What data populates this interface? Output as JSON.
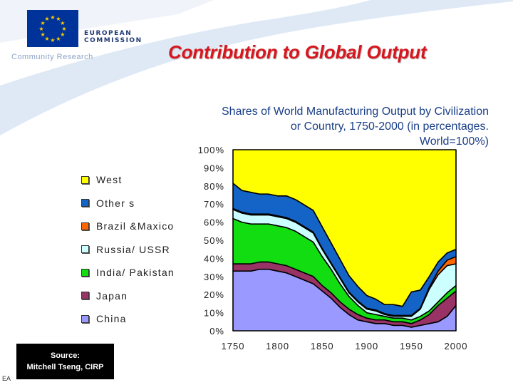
{
  "header": {
    "org_line1": "EUROPEAN",
    "org_line2": "COMMISSION",
    "program": "Community Research",
    "title": "Contribution to Global Output"
  },
  "source": {
    "line1": "Source:",
    "line2": "Mitchell Tseng, CIRP"
  },
  "footer_fragment": "EA",
  "colors": {
    "title": "#d8161e",
    "eu_blue": "#003399",
    "subtitle": "#1a3f88"
  },
  "chart_data": {
    "type": "area",
    "stacked": true,
    "title": "Shares of World Manufacturing Output by Civilization or Country, 1750-2000 (in percentages. World=100%)",
    "title_lines": [
      "Shares of World Manufacturing Output by Civilization",
      "or Country, 1750-2000 (in percentages.",
      "World=100%)"
    ],
    "xlabel": "",
    "ylabel": "",
    "xlim": [
      1750,
      2000
    ],
    "ylim": [
      0,
      100
    ],
    "x_ticks": [
      1750,
      1800,
      1850,
      1900,
      1950,
      2000
    ],
    "y_ticks": [
      "0%",
      "10%",
      "20%",
      "30%",
      "40%",
      "50%",
      "60%",
      "70%",
      "80%",
      "90%",
      "100%"
    ],
    "legend_position": "left",
    "x": [
      1750,
      1760,
      1770,
      1780,
      1790,
      1800,
      1810,
      1820,
      1830,
      1840,
      1850,
      1860,
      1870,
      1880,
      1890,
      1900,
      1910,
      1920,
      1930,
      1940,
      1950,
      1960,
      1970,
      1980,
      1990,
      2000
    ],
    "series": [
      {
        "name": "China",
        "color": "#9999ff",
        "values": [
          33,
          33,
          33,
          34,
          34,
          33,
          32,
          30,
          28,
          26,
          22,
          18,
          13,
          9,
          6,
          5,
          4,
          4,
          3,
          3,
          2,
          3,
          4,
          5,
          8,
          14
        ]
      },
      {
        "name": "Japan",
        "color": "#993366",
        "values": [
          4,
          4,
          4,
          4,
          4,
          4,
          4,
          4,
          4,
          4,
          3,
          3,
          3,
          3,
          3,
          2,
          2,
          2,
          2,
          2,
          2,
          3,
          5,
          9,
          10,
          8
        ]
      },
      {
        "name": "India/ Pakistan",
        "color": "#11dd11",
        "values": [
          25,
          23,
          22,
          21,
          21,
          21,
          21,
          21,
          20,
          19,
          16,
          13,
          10,
          7,
          5,
          3,
          3,
          2,
          2,
          2,
          2,
          2,
          2,
          2,
          3,
          3
        ]
      },
      {
        "name": "Russia/ USSR",
        "color": "#ccffff",
        "values": [
          5,
          5,
          5,
          5,
          5,
          5,
          5,
          5,
          5,
          5,
          4,
          3,
          3,
          2,
          2,
          2,
          2,
          1,
          1,
          1,
          2,
          4,
          12,
          15,
          15,
          12
        ]
      },
      {
        "name": "Brazil &Maxico",
        "color": "#ff6600",
        "values": [
          0.5,
          0.5,
          0.5,
          0.5,
          0.5,
          0.5,
          0.5,
          0.5,
          0.5,
          0.5,
          0.5,
          0.5,
          0.5,
          0.5,
          0.5,
          0.5,
          0.5,
          0.5,
          0.5,
          0.5,
          0.5,
          0.5,
          1,
          2,
          3,
          4
        ]
      },
      {
        "name": "Other s",
        "color": "#1464c8",
        "values": [
          14,
          12,
          12,
          11,
          11,
          11,
          12,
          12,
          12,
          12,
          12,
          11,
          10,
          9,
          8,
          7,
          6,
          5,
          6,
          5,
          13,
          10,
          6,
          5,
          4,
          4
        ]
      },
      {
        "name": "West",
        "color": "#ffff00",
        "values": [
          18.5,
          22.5,
          23.5,
          24.5,
          24.5,
          25.5,
          25.5,
          27.5,
          30.5,
          33.5,
          42.5,
          51.5,
          60.5,
          69.5,
          75.5,
          80.5,
          82.5,
          85.5,
          85.5,
          86.5,
          78.5,
          77.5,
          70,
          62,
          57,
          55
        ]
      }
    ]
  }
}
